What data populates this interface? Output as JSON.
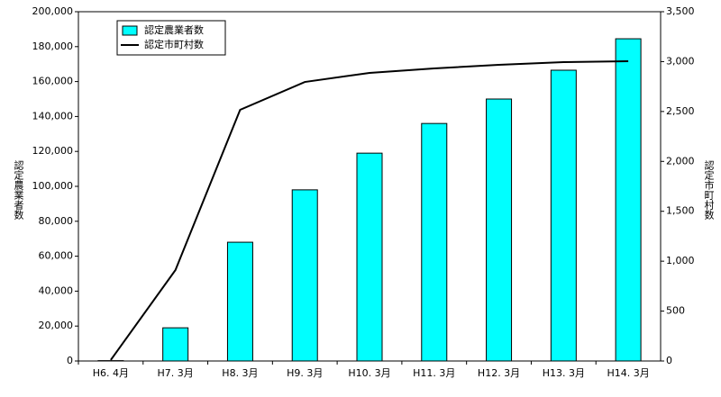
{
  "chart_data": {
    "type": "bar-line",
    "categories": [
      "H6. 4月",
      "H7. 3月",
      "H8. 3月",
      "H9. 3月",
      "H10. 3月",
      "H11. 3月",
      "H12. 3月",
      "H13. 3月",
      "H14. 3月"
    ],
    "y_label": "認定農業者数",
    "y2_label": "認定市町村数",
    "series": [
      {
        "name": "認定農業者数",
        "type": "bar",
        "color": "#00ffff",
        "values": [
          200,
          19000,
          68000,
          98000,
          119000,
          136000,
          150000,
          166500,
          184500
        ]
      },
      {
        "name": "認定市町村数",
        "type": "line",
        "color": "#000000",
        "axis": "y2",
        "values": [
          10,
          911,
          2517,
          2796,
          2887,
          2932,
          2968,
          2995,
          3004
        ]
      }
    ],
    "ylim": [
      0,
      200000
    ],
    "yticks": [
      0,
      {
        "value": 20000,
        "label": "20,000"
      },
      {
        "value": 40000,
        "label": "40,000"
      },
      {
        "value": 60000,
        "label": "60,000"
      },
      {
        "value": 80000,
        "label": "80,000"
      },
      {
        "value": 100000,
        "label": "100,000"
      },
      {
        "value": 120000,
        "label": "120,000"
      },
      {
        "value": 140000,
        "label": "140,000"
      },
      {
        "value": 160000,
        "label": "160,000"
      },
      {
        "value": 180000,
        "label": "180,000"
      },
      {
        "value": 200000,
        "label": "200,000"
      }
    ],
    "y2lim": [
      0,
      3500
    ],
    "y2ticks": [
      0,
      500,
      {
        "value": 1000,
        "label": "1,000"
      },
      {
        "value": 1500,
        "label": "1,500"
      },
      {
        "value": 2000,
        "label": "2,000"
      },
      {
        "value": 2500,
        "label": "2,500"
      },
      {
        "value": 3000,
        "label": "3,000"
      },
      {
        "value": 3500,
        "label": "3,500"
      }
    ]
  }
}
